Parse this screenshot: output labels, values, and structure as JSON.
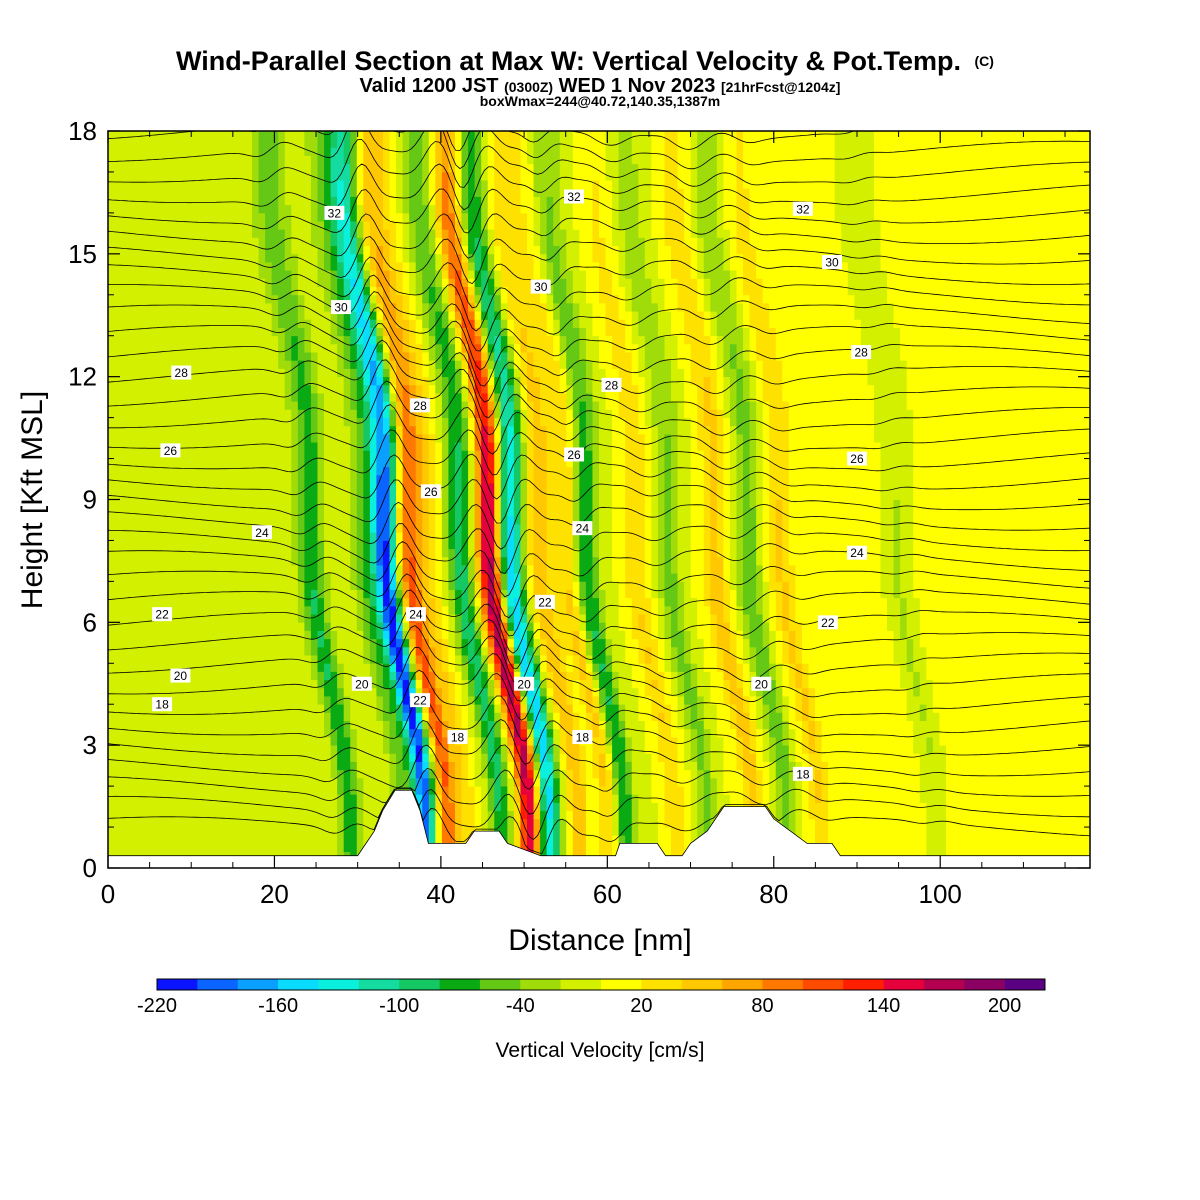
{
  "header": {
    "title": "Wind-Parallel Section at Max W: Vertical Velocity & Pot.Temp.",
    "title_mark": "(C)",
    "line2_a": "Valid 1200 JST",
    "line2_b": "(0300Z)",
    "line2_c": "WED 1 Nov 2023",
    "line2_d": "[21hrFcst@1204z]",
    "line3": "boxWmax=244@40.72,140.35,1387m"
  },
  "chart_data": {
    "type": "heatmap",
    "xlabel": "Distance [nm]",
    "ylabel": "Height [Kft MSL]",
    "xlim": [
      0,
      118
    ],
    "ylim": [
      0,
      18
    ],
    "xticks": [
      0,
      20,
      40,
      60,
      80,
      100
    ],
    "yticks": [
      0,
      3,
      6,
      9,
      12,
      15,
      18
    ],
    "x_tick_labels": [
      "0",
      "20",
      "40",
      "60",
      "80",
      "100"
    ],
    "y_tick_labels": [
      "0",
      "3",
      "6",
      "9",
      "12",
      "15",
      "18"
    ],
    "colorbar": {
      "label": "Vertical Velocity [cm/s]",
      "levels": [
        -220,
        -200,
        -180,
        -160,
        -140,
        -120,
        -100,
        -80,
        -60,
        -40,
        -20,
        0,
        20,
        40,
        60,
        80,
        100,
        120,
        140,
        160,
        180,
        200,
        220
      ],
      "colors": [
        "#0a14ff",
        "#0a64ff",
        "#0aa0ff",
        "#0adcff",
        "#0af0dc",
        "#14dca0",
        "#14c864",
        "#0aaa14",
        "#64c814",
        "#a0dc0a",
        "#d2f000",
        "#ffff00",
        "#ffe100",
        "#ffc800",
        "#ffa500",
        "#ff7800",
        "#ff4b00",
        "#ff1e00",
        "#e6003c",
        "#b40050",
        "#8c0064",
        "#5a0082"
      ],
      "tick_values": [
        -220,
        -160,
        -100,
        -40,
        20,
        80,
        140,
        200
      ],
      "tick_labels": [
        "-220",
        "-160",
        "-100",
        "-40",
        "20",
        "80",
        "140",
        "200"
      ]
    },
    "wave_bands": [
      {
        "x": 27.5,
        "amplitude": -70
      },
      {
        "x": 34.0,
        "amplitude": -45
      },
      {
        "x": 36.5,
        "amplitude": -200
      },
      {
        "x": 39.2,
        "amplitude": 110
      },
      {
        "x": 41.5,
        "amplitude": 40
      },
      {
        "x": 45.5,
        "amplitude": -85
      },
      {
        "x": 49.0,
        "amplitude": 180
      },
      {
        "x": 51.5,
        "amplitude": -150
      },
      {
        "x": 55.0,
        "amplitude": 60
      },
      {
        "x": 58.5,
        "amplitude": 50
      },
      {
        "x": 60.5,
        "amplitude": -80
      },
      {
        "x": 66.5,
        "amplitude": 40
      },
      {
        "x": 70.5,
        "amplitude": -45
      },
      {
        "x": 76.0,
        "amplitude": 50
      },
      {
        "x": 80.0,
        "amplitude": -55
      },
      {
        "x": 84.0,
        "amplitude": 40
      },
      {
        "x": 98.0,
        "amplitude": -25
      }
    ],
    "background_left_value": -12,
    "background_right_value": 8,
    "terrain_kft": [
      [
        0,
        0.3
      ],
      [
        30,
        0.3
      ],
      [
        31,
        0.6
      ],
      [
        32,
        0.9
      ],
      [
        33,
        1.4
      ],
      [
        34.5,
        1.9
      ],
      [
        36.5,
        1.9
      ],
      [
        37.5,
        1.4
      ],
      [
        38.5,
        0.6
      ],
      [
        43,
        0.6
      ],
      [
        44,
        0.9
      ],
      [
        47,
        0.9
      ],
      [
        48,
        0.6
      ],
      [
        52,
        0.3
      ],
      [
        61,
        0.3
      ],
      [
        61.5,
        0.6
      ],
      [
        66,
        0.6
      ],
      [
        67,
        0.3
      ],
      [
        69,
        0.3
      ],
      [
        70,
        0.6
      ],
      [
        72,
        0.9
      ],
      [
        73,
        1.2
      ],
      [
        74,
        1.5
      ],
      [
        79,
        1.5
      ],
      [
        80,
        1.2
      ],
      [
        82,
        0.9
      ],
      [
        84,
        0.6
      ],
      [
        87,
        0.6
      ],
      [
        88,
        0.3
      ],
      [
        118,
        0.3
      ]
    ],
    "theta_isentrope_labels": [
      {
        "label": "32",
        "x": 27.2,
        "y": 16.0
      },
      {
        "label": "32",
        "x": 56.0,
        "y": 16.4
      },
      {
        "label": "32",
        "x": 83.5,
        "y": 16.1
      },
      {
        "label": "30",
        "x": 28.0,
        "y": 13.7
      },
      {
        "label": "30",
        "x": 52.0,
        "y": 14.2
      },
      {
        "label": "30",
        "x": 87.0,
        "y": 14.8
      },
      {
        "label": "28",
        "x": 8.8,
        "y": 12.1
      },
      {
        "label": "28",
        "x": 37.5,
        "y": 11.3
      },
      {
        "label": "28",
        "x": 60.5,
        "y": 11.8
      },
      {
        "label": "28",
        "x": 90.5,
        "y": 12.6
      },
      {
        "label": "26",
        "x": 7.5,
        "y": 10.2
      },
      {
        "label": "26",
        "x": 38.8,
        "y": 9.2
      },
      {
        "label": "26",
        "x": 56.0,
        "y": 10.1
      },
      {
        "label": "26",
        "x": 90.0,
        "y": 10.0
      },
      {
        "label": "24",
        "x": 18.5,
        "y": 8.2
      },
      {
        "label": "24",
        "x": 57.0,
        "y": 8.3
      },
      {
        "label": "24",
        "x": 90.0,
        "y": 7.7
      },
      {
        "label": "24",
        "x": 37.0,
        "y": 6.2
      },
      {
        "label": "22",
        "x": 6.5,
        "y": 6.2
      },
      {
        "label": "22",
        "x": 52.5,
        "y": 6.5
      },
      {
        "label": "22",
        "x": 86.5,
        "y": 6.0
      },
      {
        "label": "20",
        "x": 8.7,
        "y": 4.7
      },
      {
        "label": "20",
        "x": 30.5,
        "y": 4.5
      },
      {
        "label": "20",
        "x": 50.0,
        "y": 4.5
      },
      {
        "label": "20",
        "x": 78.5,
        "y": 4.5
      },
      {
        "label": "18",
        "x": 6.5,
        "y": 4.0
      },
      {
        "label": "22",
        "x": 37.5,
        "y": 4.1
      },
      {
        "label": "18",
        "x": 42.0,
        "y": 3.2
      },
      {
        "label": "18",
        "x": 57.0,
        "y": 3.2
      },
      {
        "label": "18",
        "x": 83.5,
        "y": 2.3
      }
    ]
  }
}
